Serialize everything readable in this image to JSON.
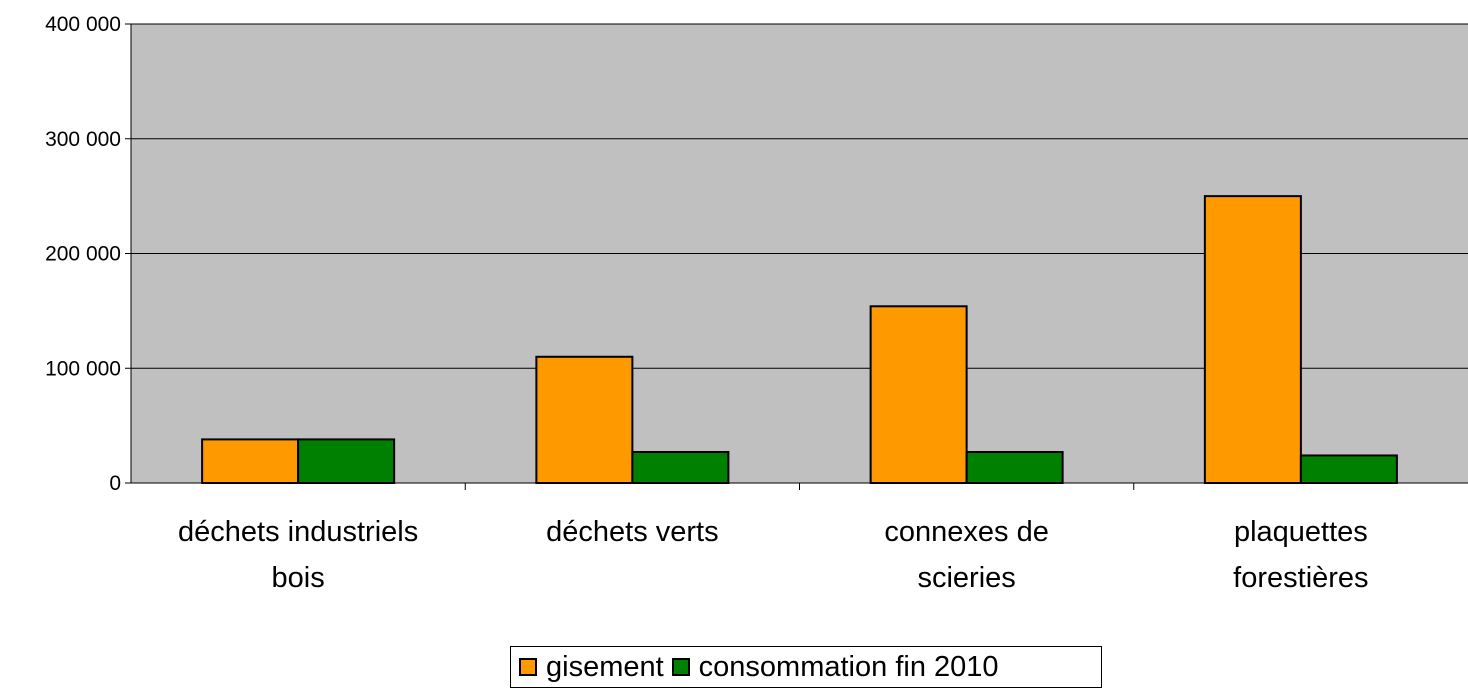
{
  "chart_data": {
    "type": "bar",
    "categories": [
      [
        "déchets industriels",
        "bois"
      ],
      [
        "déchets verts"
      ],
      [
        "connexes de",
        "scieries"
      ],
      [
        "plaquettes",
        "forestières"
      ]
    ],
    "series": [
      {
        "name": "gisement",
        "values": [
          38000,
          110000,
          154000,
          250000
        ],
        "color": "#ff9900"
      },
      {
        "name": "consommation fin 2010",
        "values": [
          38000,
          27000,
          27000,
          24000
        ],
        "color": "#008000"
      }
    ],
    "ylim": [
      0,
      400000
    ],
    "yticks": [
      0,
      100000,
      200000,
      300000,
      400000
    ],
    "ytick_labels": [
      "0",
      "100 000",
      "200 000",
      "300 000",
      "400 000"
    ],
    "grid": true,
    "plot_background": "#c0c0c0",
    "legend_position": "bottom"
  }
}
